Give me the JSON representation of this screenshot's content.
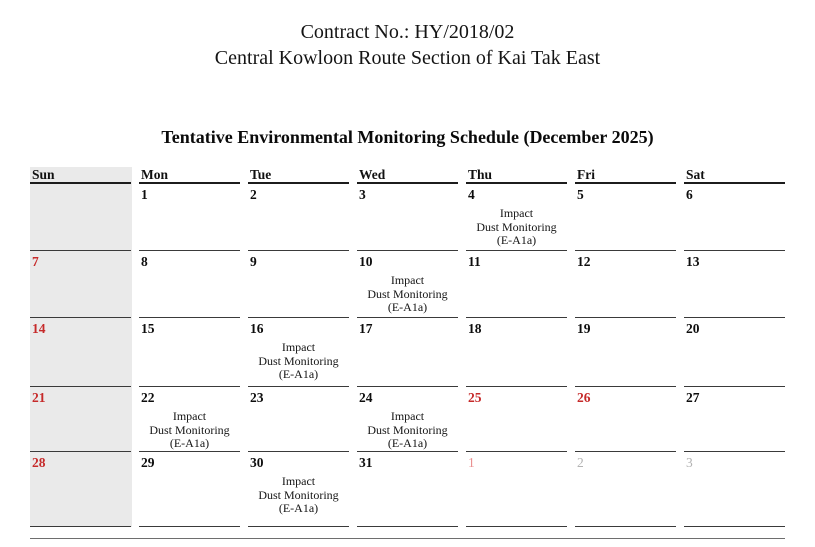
{
  "header": {
    "line1": "Contract No.: HY/2018/02",
    "line2": "Central Kowloon Route Section of Kai Tak East"
  },
  "schedule": {
    "title": "Tentative Environmental Monitoring Schedule (December 2025)",
    "weekdays": [
      "Sun",
      "Mon",
      "Tue",
      "Wed",
      "Thu",
      "Fri",
      "Sat"
    ],
    "activity_lines": [
      "Impact",
      "Dust Monitoring",
      "(E-A1a)"
    ],
    "weeks": [
      [
        {
          "day": "",
          "style": "blank",
          "activity": false
        },
        {
          "day": "1",
          "style": "normal",
          "activity": false
        },
        {
          "day": "2",
          "style": "normal",
          "activity": false
        },
        {
          "day": "3",
          "style": "normal",
          "activity": false
        },
        {
          "day": "4",
          "style": "normal",
          "activity": true
        },
        {
          "day": "5",
          "style": "normal",
          "activity": false
        },
        {
          "day": "6",
          "style": "normal",
          "activity": false
        }
      ],
      [
        {
          "day": "7",
          "style": "holiday",
          "activity": false
        },
        {
          "day": "8",
          "style": "normal",
          "activity": false
        },
        {
          "day": "9",
          "style": "normal",
          "activity": false
        },
        {
          "day": "10",
          "style": "normal",
          "activity": true
        },
        {
          "day": "11",
          "style": "normal",
          "activity": false
        },
        {
          "day": "12",
          "style": "normal",
          "activity": false
        },
        {
          "day": "13",
          "style": "normal",
          "activity": false
        }
      ],
      [
        {
          "day": "14",
          "style": "holiday",
          "activity": false
        },
        {
          "day": "15",
          "style": "normal",
          "activity": false
        },
        {
          "day": "16",
          "style": "normal",
          "activity": true
        },
        {
          "day": "17",
          "style": "normal",
          "activity": false
        },
        {
          "day": "18",
          "style": "normal",
          "activity": false
        },
        {
          "day": "19",
          "style": "normal",
          "activity": false
        },
        {
          "day": "20",
          "style": "normal",
          "activity": false
        }
      ],
      [
        {
          "day": "21",
          "style": "holiday",
          "activity": false
        },
        {
          "day": "22",
          "style": "normal",
          "activity": true
        },
        {
          "day": "23",
          "style": "normal",
          "activity": false
        },
        {
          "day": "24",
          "style": "normal",
          "activity": true
        },
        {
          "day": "25",
          "style": "holiday",
          "activity": false
        },
        {
          "day": "26",
          "style": "holiday",
          "activity": false
        },
        {
          "day": "27",
          "style": "normal",
          "activity": false
        }
      ],
      [
        {
          "day": "28",
          "style": "holiday",
          "activity": false
        },
        {
          "day": "29",
          "style": "normal",
          "activity": false
        },
        {
          "day": "30",
          "style": "normal",
          "activity": true
        },
        {
          "day": "31",
          "style": "normal",
          "activity": false
        },
        {
          "day": "1",
          "style": "next-holiday",
          "activity": false
        },
        {
          "day": "2",
          "style": "next",
          "activity": false
        },
        {
          "day": "3",
          "style": "next",
          "activity": false
        }
      ]
    ]
  },
  "colors": {
    "holiday_red": "#c62a2a",
    "next_month_holiday_red": "#ea9191",
    "next_month_gray": "#b3b3b3",
    "sunday_column_shade": "#eaeaea"
  }
}
